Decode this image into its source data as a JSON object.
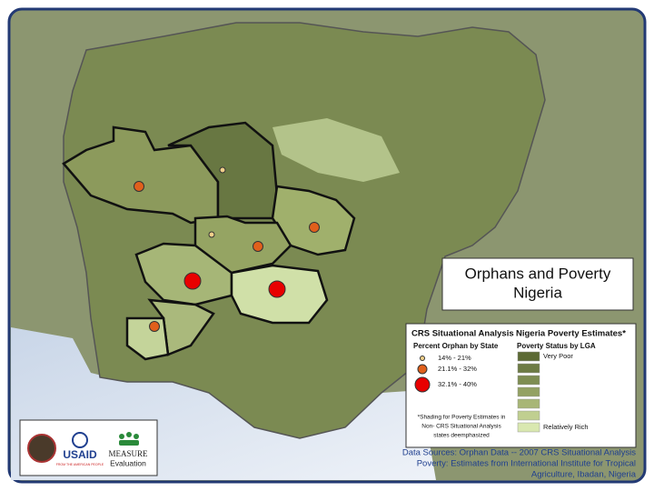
{
  "map": {
    "title": "Orphans and Poverty",
    "subtitle": "Nigeria",
    "legend_orphan": {
      "heading": "CRS Situational Analysis",
      "subheading": "Percent Orphan by State",
      "items": [
        "14% - 21%",
        "21.1% - 32%",
        "32.1% - 40%"
      ],
      "footnote": [
        "*Shading for Poverty Estimates in",
        "Non- CRS Situational Analysis",
        "states deemphasized"
      ]
    },
    "legend_poverty": {
      "heading": "Nigeria Poverty Estimates*",
      "subheading": "Poverty Status by LGA",
      "swatches": [
        "#5c6a34",
        "#6d7b44",
        "#7e8d52",
        "#93a163",
        "#a8b676",
        "#c0cf90",
        "#d9e8b0"
      ],
      "top_label": "Very Poor",
      "bottom_label": "Relatively Rich"
    },
    "logos": {
      "usaid": "USAID",
      "usaid_tagline": "FROM THE AMERICAN PEOPLE",
      "measure": "MEASURE",
      "evaluation": "Evaluation"
    },
    "sources": [
      "Data Sources: Orphan Data -- 2007 CRS Situational Analysis",
      "Poverty: Estimates from International Institute for Tropical",
      "Agriculture, Ibadan, Nigeria"
    ]
  }
}
